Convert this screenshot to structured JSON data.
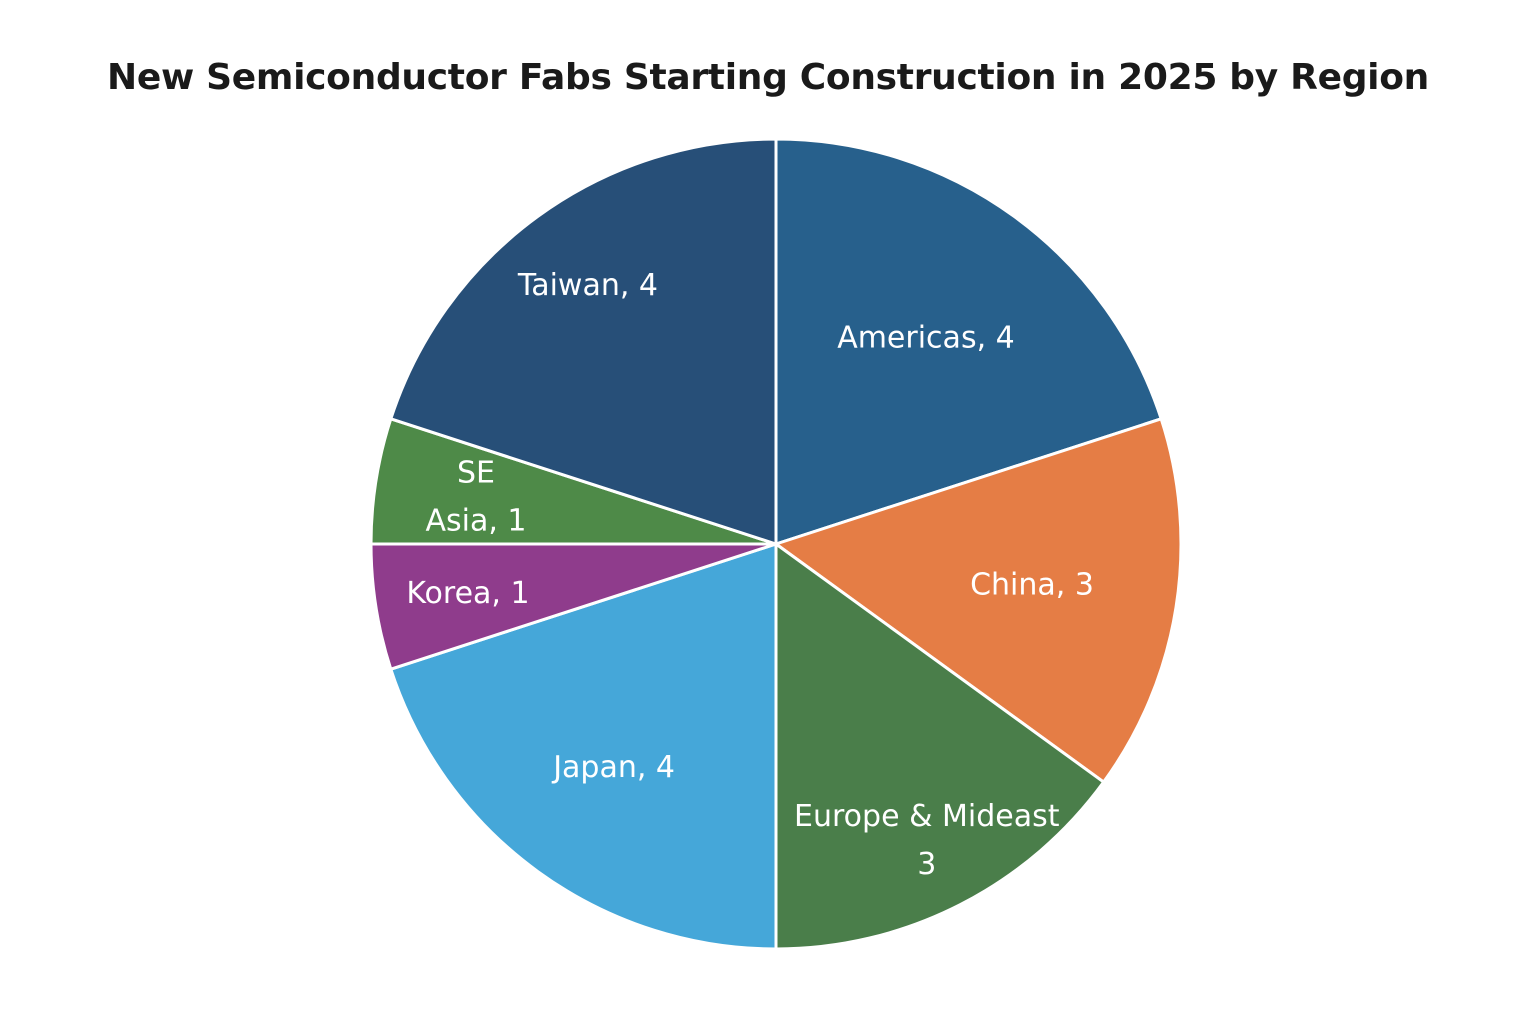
{
  "chart_data": {
    "type": "pie",
    "title": "New Semiconductor Fabs Starting Construction in 2025 by Region",
    "slices": [
      {
        "label": "Americas",
        "value": 4,
        "display_label": [
          "Americas, 4"
        ],
        "color": "#27608C"
      },
      {
        "label": "China",
        "value": 3,
        "display_label": [
          "China, 3"
        ],
        "color": "#E57D45"
      },
      {
        "label": "Europe & Mideast",
        "value": 3,
        "display_label": [
          "Europe & Mideast",
          "3"
        ],
        "color": "#4A7E4A"
      },
      {
        "label": "Japan",
        "value": 4,
        "display_label": [
          "Japan, 4"
        ],
        "color": "#45A7D9"
      },
      {
        "label": "Korea",
        "value": 1,
        "display_label": [
          "Korea, 1"
        ],
        "color": "#8F3C8C"
      },
      {
        "label": "SE Asia",
        "value": 1,
        "display_label": [
          "SE",
          "Asia, 1"
        ],
        "color": "#4E8A48"
      },
      {
        "label": "Taiwan",
        "value": 4,
        "display_label": [
          "Taiwan, 4"
        ],
        "color": "#274F78"
      }
    ],
    "start_angle_deg": 0,
    "direction": "clockwise",
    "legend": "none",
    "labels": "inside"
  }
}
